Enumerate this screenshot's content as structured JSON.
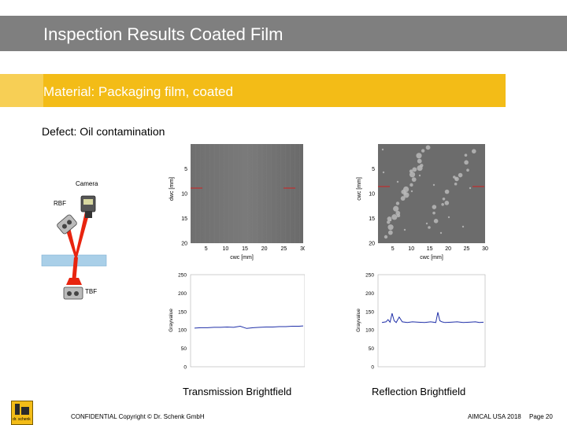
{
  "slide": {
    "title": "Inspection Results Coated Film",
    "material": "Material: Packaging film, coated",
    "defect": "Defect: Oil contamination"
  },
  "diagram": {
    "camera_label": "Camera",
    "rbf_label": "RBF",
    "tbf_label": "TBF"
  },
  "colors": {
    "title_bar": "#7f7f7f",
    "material_bar": "#f3bc17",
    "beam": "#e8240f",
    "film": "#a9cfe8",
    "profile_line": "#1f2fa8"
  },
  "chart_data": [
    {
      "type": "heatmap",
      "name": "transmission-image",
      "xlabel": "cwc [mm]",
      "ylabel": "dwc [mm]",
      "x_ticks": [
        5,
        10,
        15,
        20,
        25,
        30
      ],
      "y_ticks": [
        5,
        10,
        15,
        20
      ],
      "xlim": [
        1,
        30
      ],
      "ylim": [
        0,
        20
      ]
    },
    {
      "type": "heatmap",
      "name": "reflection-image",
      "xlabel": "cwc [mm]",
      "ylabel": "cwc [mm]",
      "x_ticks": [
        5,
        10,
        15,
        20,
        25,
        30
      ],
      "y_ticks": [
        5,
        10,
        15,
        20
      ],
      "xlim": [
        1,
        30
      ],
      "ylim": [
        0,
        20
      ]
    },
    {
      "type": "line",
      "name": "transmission-profile",
      "xlabel": "",
      "ylabel": "Grayvalue",
      "ylim": [
        0,
        250
      ],
      "y_ticks": [
        0,
        50,
        100,
        150,
        200,
        250
      ],
      "x": [
        0,
        6,
        12,
        18,
        24,
        30,
        36,
        42,
        48,
        54,
        60,
        66,
        72,
        78,
        84,
        90,
        96,
        100
      ],
      "values": [
        105,
        106,
        106,
        107,
        107,
        108,
        107,
        110,
        104,
        106,
        107,
        108,
        108,
        109,
        109,
        110,
        110,
        111
      ]
    },
    {
      "type": "line",
      "name": "reflection-profile",
      "xlabel": "",
      "ylabel": "Grayvalue",
      "ylim": [
        0,
        250
      ],
      "y_ticks": [
        0,
        50,
        100,
        150,
        200,
        250
      ],
      "x": [
        0,
        4,
        6,
        8,
        10,
        12,
        14,
        17,
        20,
        25,
        30,
        36,
        42,
        48,
        53,
        55,
        57,
        59,
        62,
        68,
        74,
        80,
        86,
        92,
        96,
        100
      ],
      "values": [
        120,
        122,
        128,
        121,
        145,
        125,
        120,
        135,
        122,
        120,
        122,
        121,
        120,
        122,
        120,
        148,
        125,
        122,
        120,
        121,
        122,
        120,
        121,
        122,
        120,
        121
      ]
    }
  ],
  "captions": {
    "transmission": "Transmission Brightfield",
    "reflection": "Reflection Brightfield"
  },
  "footer": {
    "logo_text": "dr. schenk",
    "confidential": "CONFIDENTIAL Copyright © Dr. Schenk GmbH",
    "event": "AIMCAL USA 2018",
    "page": "Page 20"
  }
}
